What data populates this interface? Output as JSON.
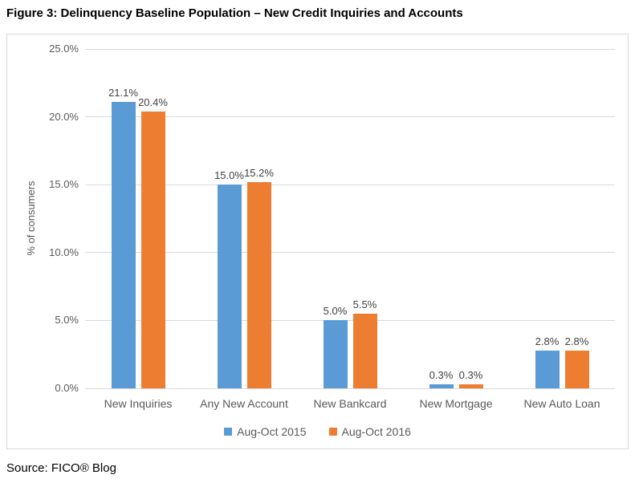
{
  "figure": {
    "title": "Figure 3: Delinquency Baseline Population – New Credit Inquiries and Accounts",
    "source": "Source: FICO® Blog"
  },
  "chart_data": {
    "type": "bar",
    "title": "",
    "xlabel": "",
    "ylabel": "% of consumers",
    "categories": [
      "New Inquiries",
      "Any New Account",
      "New Bankcard",
      "New Mortgage",
      "New Auto Loan"
    ],
    "series": [
      {
        "name": "Aug-Oct 2015",
        "color": "#5b9bd5",
        "values": [
          21.1,
          15.0,
          5.0,
          0.3,
          2.8
        ],
        "labels": [
          "21.1%",
          "15.0%",
          "5.0%",
          "0.3%",
          "2.8%"
        ]
      },
      {
        "name": "Aug-Oct 2016",
        "color": "#ed7d31",
        "values": [
          20.4,
          15.2,
          5.5,
          0.3,
          2.8
        ],
        "labels": [
          "20.4%",
          "15.2%",
          "5.5%",
          "0.3%",
          "2.8%"
        ]
      }
    ],
    "ylim": [
      0,
      25
    ],
    "yticks": [
      0,
      5,
      10,
      15,
      20,
      25
    ],
    "ytick_labels": [
      "0.0%",
      "5.0%",
      "10.0%",
      "15.0%",
      "20.0%",
      "25.0%"
    ],
    "grid": true,
    "legend_position": "bottom"
  },
  "colors": {
    "gridline": "#d9d9d9",
    "axis_text": "#595959",
    "data_label": "#404040",
    "frame_border": "#d9d9d9"
  }
}
